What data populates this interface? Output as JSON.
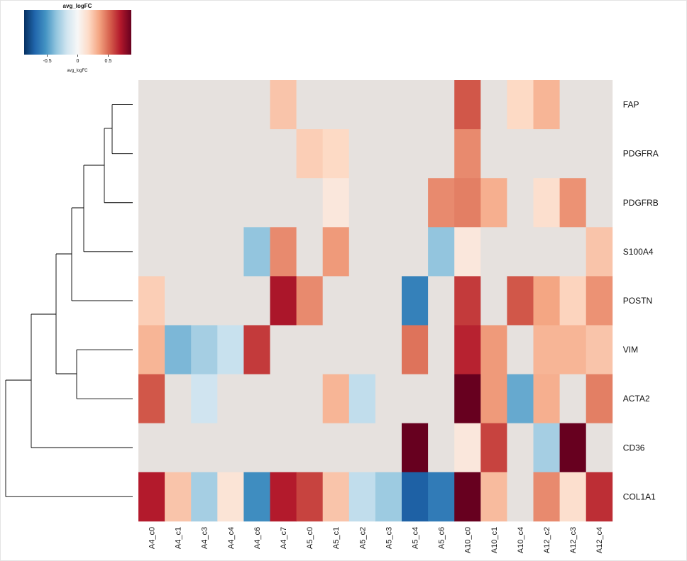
{
  "chart_data": {
    "type": "heatmap",
    "legend": {
      "title": "avg_logFC",
      "axis_label": "avg_logFC",
      "ticks": [
        "-0.5",
        "0",
        "0.5"
      ],
      "tick_values": [
        -0.5,
        0,
        0.5
      ],
      "range": [
        -0.88,
        0.88
      ],
      "placement": "top-left",
      "colors": [
        "#053061",
        "#2166AC",
        "#4393C3",
        "#92C5DE",
        "#D1E5F0",
        "#F7F7F7",
        "#FDDBC7",
        "#F4A582",
        "#D6604D",
        "#B2182B",
        "#67001F"
      ]
    },
    "na_color": "#E6E1DE",
    "rows": [
      "FAP",
      "PDGFRA",
      "PDGFRB",
      "S100A4",
      "POSTN",
      "VIM",
      "ACTA2",
      "CD36",
      "COL1A1"
    ],
    "columns": [
      "A4_c0",
      "A4_c1",
      "A4_c3",
      "A4_c4",
      "A4_c6",
      "A4_c7",
      "A5_c0",
      "A5_c1",
      "A5_c2",
      "A5_c3",
      "A5_c4",
      "A5_c6",
      "A10_c0",
      "A10_c1",
      "A10_c4",
      "A12_c2",
      "A12_c3",
      "A12_c4"
    ],
    "values": [
      [
        null,
        null,
        null,
        null,
        null,
        0.25,
        null,
        null,
        null,
        null,
        null,
        null,
        0.55,
        null,
        0.18,
        0.3,
        null,
        null
      ],
      [
        null,
        null,
        null,
        null,
        null,
        null,
        0.22,
        0.18,
        null,
        null,
        null,
        null,
        0.42,
        null,
        null,
        null,
        null,
        null
      ],
      [
        null,
        null,
        null,
        null,
        null,
        null,
        null,
        0.1,
        null,
        null,
        null,
        0.42,
        0.45,
        0.32,
        null,
        0.15,
        0.4,
        null
      ],
      [
        null,
        null,
        null,
        null,
        -0.35,
        0.42,
        null,
        0.38,
        null,
        null,
        null,
        -0.35,
        0.1,
        null,
        null,
        null,
        null,
        0.25
      ],
      [
        0.22,
        null,
        null,
        null,
        null,
        0.72,
        0.42,
        null,
        null,
        null,
        -0.6,
        null,
        0.62,
        null,
        0.55,
        0.35,
        0.2,
        0.4
      ],
      [
        0.3,
        -0.4,
        -0.3,
        -0.2,
        0.62,
        null,
        null,
        null,
        null,
        null,
        0.48,
        null,
        0.68,
        0.38,
        null,
        0.3,
        0.3,
        0.25
      ],
      [
        0.55,
        null,
        -0.18,
        null,
        null,
        null,
        null,
        0.3,
        -0.22,
        null,
        null,
        null,
        0.92,
        0.38,
        -0.45,
        0.32,
        null,
        0.45
      ],
      [
        null,
        null,
        null,
        null,
        null,
        null,
        null,
        null,
        null,
        null,
        0.88,
        null,
        0.1,
        0.6,
        null,
        -0.3,
        0.88,
        null
      ],
      [
        0.7,
        0.25,
        -0.3,
        0.12,
        -0.55,
        0.7,
        0.6,
        0.25,
        -0.22,
        -0.32,
        -0.72,
        -0.62,
        0.92,
        0.28,
        null,
        0.42,
        0.15,
        0.65
      ]
    ]
  }
}
